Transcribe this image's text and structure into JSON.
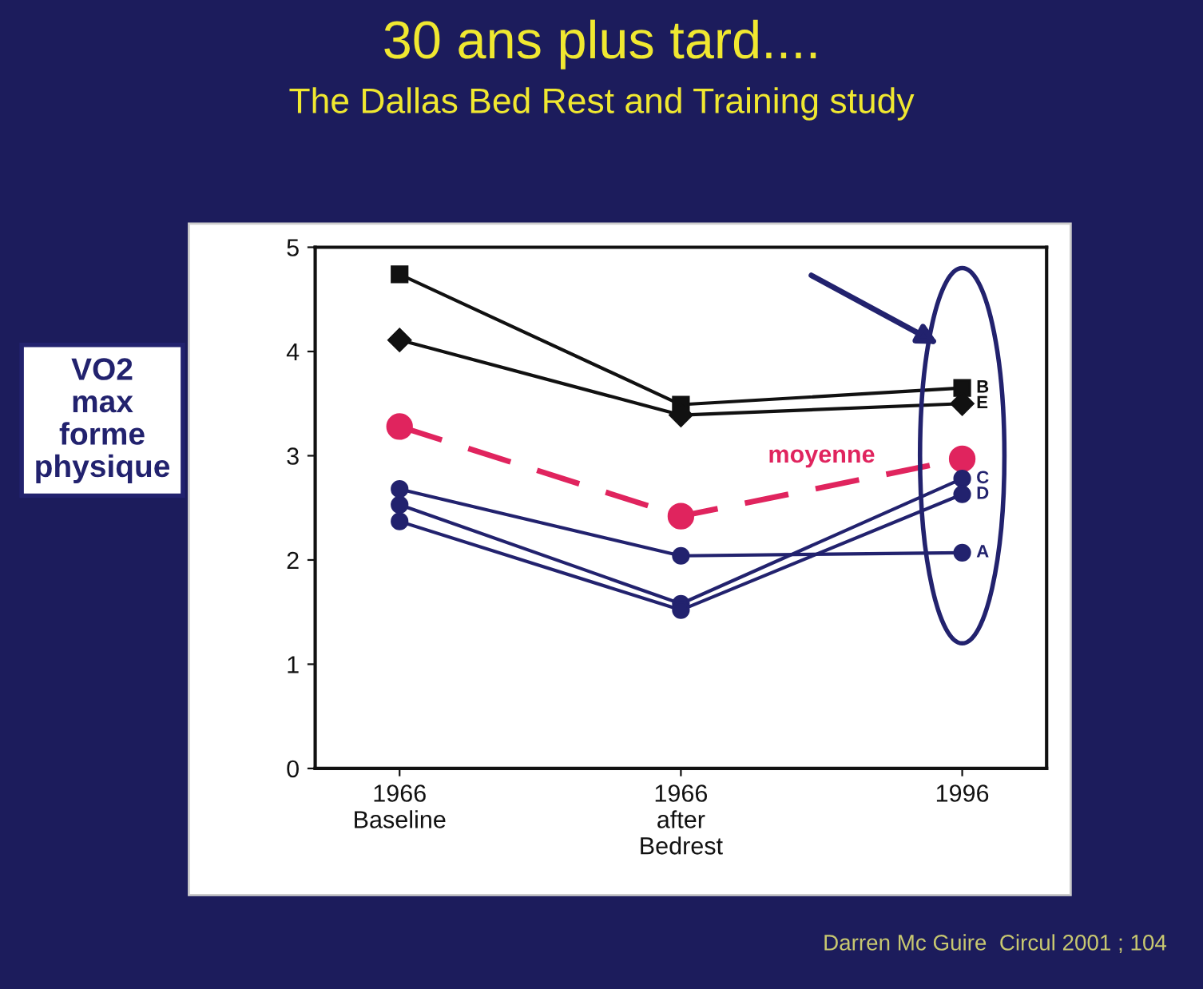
{
  "chart_data": {
    "type": "line",
    "title": "30 ans plus tard....",
    "subtitle": "The Dallas Bed Rest and Training study",
    "ylabel": "VO2\nmax\nforme\nphysique",
    "categories": [
      "1966\nBaseline",
      "1966\nafter\nBedrest",
      "1996"
    ],
    "series": [
      {
        "name": "B",
        "color": "#111111",
        "marker": "square",
        "line_style": "solid",
        "values": [
          4.74,
          3.49,
          3.65
        ]
      },
      {
        "name": "E",
        "color": "#111111",
        "marker": "diamond",
        "line_style": "solid",
        "values": [
          4.11,
          3.39,
          3.5
        ]
      },
      {
        "name": "moyenne",
        "color": "#e0245e",
        "marker": "circle",
        "line_style": "dashed",
        "values": [
          3.28,
          2.42,
          2.97
        ]
      },
      {
        "name": "C",
        "color": "#22226e",
        "marker": "circle",
        "line_style": "solid",
        "values": [
          2.53,
          1.58,
          2.78
        ]
      },
      {
        "name": "D",
        "color": "#22226e",
        "marker": "circle",
        "line_style": "solid",
        "values": [
          2.37,
          1.52,
          2.63
        ]
      },
      {
        "name": "A",
        "color": "#22226e",
        "marker": "circle",
        "line_style": "solid",
        "values": [
          2.68,
          2.04,
          2.07
        ]
      }
    ],
    "ylim": [
      0,
      5
    ],
    "yticks": [
      0,
      1,
      2,
      3,
      4,
      5
    ],
    "grid": false,
    "annotations": [
      "Darren Mc Guire  Circul 2001 ; 104"
    ]
  }
}
